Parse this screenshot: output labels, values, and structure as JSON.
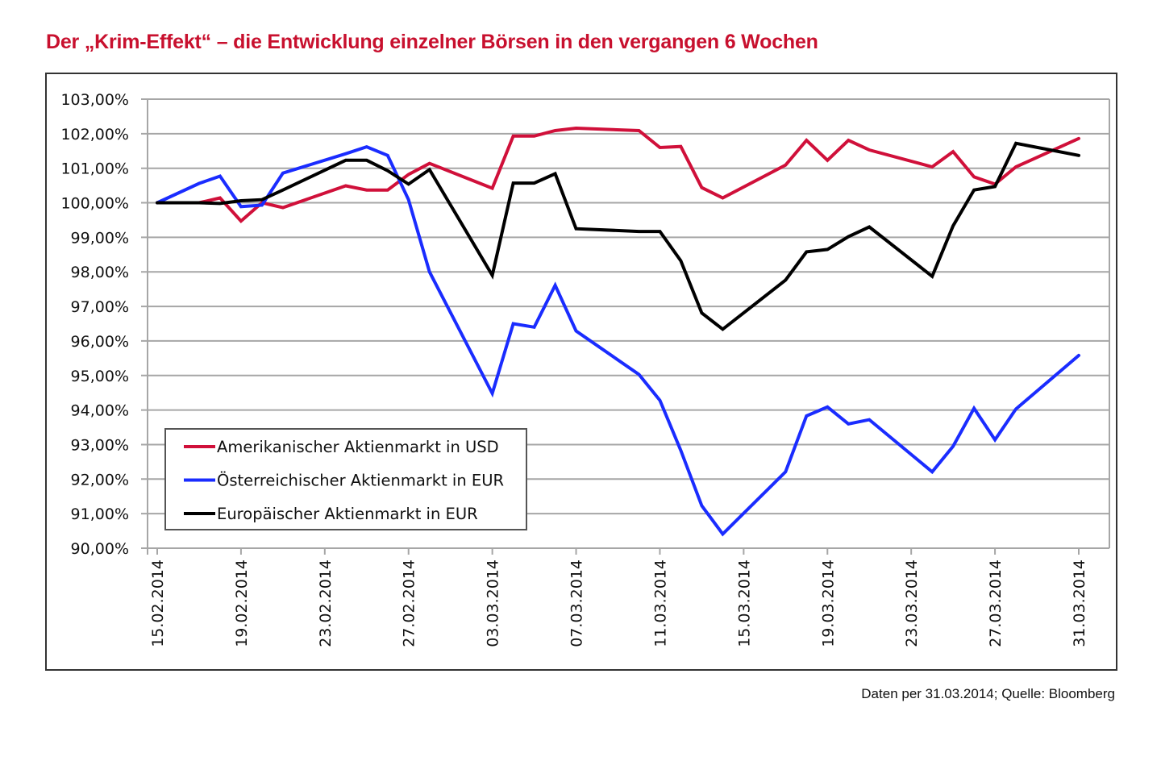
{
  "title": "Der „Krim-Effekt“ – die Entwicklung einzelner Börsen in den vergangen 6 Wochen",
  "footer": "Daten per 31.03.2014; Quelle: Bloomberg",
  "chart_data": {
    "type": "line",
    "title": "Der „Krim-Effekt“ – die Entwicklung einzelner Börsen in den vergangen 6 Wochen",
    "xlabel": "",
    "ylabel": "",
    "ylim": [
      90,
      103
    ],
    "ystep": 1,
    "ytick_labels": [
      "90,00%",
      "91,00%",
      "92,00%",
      "93,00%",
      "94,00%",
      "95,00%",
      "96,00%",
      "97,00%",
      "98,00%",
      "99,00%",
      "100,00%",
      "101,00%",
      "102,00%",
      "103,00%"
    ],
    "x_start": "15.02.2014",
    "x_range_days": [
      0,
      44
    ],
    "xtick_days": [
      0,
      4,
      8,
      12,
      16,
      20,
      24,
      28,
      32,
      36,
      40,
      44
    ],
    "xtick_labels": [
      "15.02.2014",
      "19.02.2014",
      "23.02.2014",
      "27.02.2014",
      "03.03.2014",
      "07.03.2014",
      "11.03.2014",
      "15.03.2014",
      "19.03.2014",
      "23.03.2014",
      "27.03.2014",
      "31.03.2014"
    ],
    "grid": true,
    "legend_position": "bottom-left",
    "series": [
      {
        "name": "Amerikanischer Aktienmarkt in USD",
        "color": "#d0103a",
        "days": [
          0,
          2,
          3,
          4,
          5,
          6,
          9,
          10,
          11,
          12,
          13,
          16,
          17,
          18,
          19,
          20,
          23,
          24,
          25,
          26,
          27,
          30,
          31,
          32,
          33,
          34,
          37,
          38,
          39,
          40,
          41,
          44
        ],
        "values": [
          100.0,
          100.0,
          100.14,
          99.47,
          100.0,
          99.86,
          100.49,
          100.37,
          100.37,
          100.82,
          101.14,
          100.42,
          101.93,
          101.93,
          102.09,
          102.16,
          102.09,
          101.6,
          101.63,
          100.44,
          100.14,
          101.09,
          101.81,
          101.23,
          101.81,
          101.53,
          101.04,
          101.48,
          100.75,
          100.54,
          101.04,
          101.86
        ]
      },
      {
        "name": "Österreichischer Aktienmarkt in EUR",
        "color": "#1a2cff",
        "days": [
          0,
          2,
          3,
          4,
          5,
          6,
          9,
          10,
          11,
          12,
          13,
          16,
          17,
          18,
          19,
          20,
          23,
          24,
          25,
          26,
          27,
          30,
          31,
          32,
          33,
          34,
          37,
          38,
          39,
          40,
          41,
          44
        ],
        "values": [
          100.0,
          100.56,
          100.77,
          99.89,
          99.93,
          100.86,
          101.42,
          101.62,
          101.37,
          100.09,
          98.0,
          94.48,
          96.5,
          96.4,
          97.61,
          96.29,
          95.03,
          94.28,
          92.83,
          91.23,
          90.41,
          92.21,
          93.83,
          94.09,
          93.6,
          93.72,
          92.21,
          92.95,
          94.05,
          93.14,
          94.03,
          95.58
        ]
      },
      {
        "name": "Europäischer Aktienmarkt in EUR",
        "color": "#000000",
        "days": [
          0,
          2,
          3,
          4,
          5,
          6,
          9,
          10,
          11,
          12,
          13,
          16,
          17,
          18,
          19,
          20,
          23,
          24,
          25,
          26,
          27,
          30,
          31,
          32,
          33,
          34,
          37,
          38,
          39,
          40,
          41,
          44
        ],
        "values": [
          100.0,
          100.0,
          99.98,
          100.06,
          100.09,
          100.37,
          101.23,
          101.23,
          100.93,
          100.54,
          100.96,
          97.9,
          100.57,
          100.57,
          100.84,
          99.25,
          99.17,
          99.17,
          98.32,
          96.81,
          96.34,
          97.76,
          98.58,
          98.65,
          99.02,
          99.3,
          97.87,
          99.33,
          100.37,
          100.47,
          101.72,
          101.37
        ]
      }
    ]
  }
}
